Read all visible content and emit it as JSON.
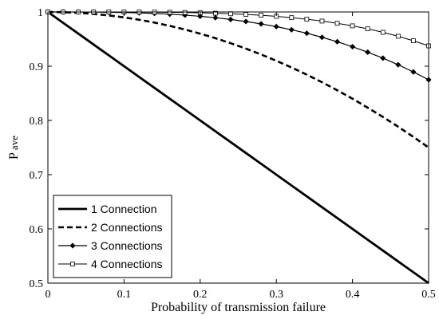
{
  "chart_data": {
    "type": "line",
    "title": "",
    "xlabel": "Probability of transmission failure",
    "ylabel_main": "P",
    "ylabel_sub": "ave",
    "xlim": [
      0,
      0.5
    ],
    "ylim": [
      0.5,
      1
    ],
    "xticks": [
      0,
      0.1,
      0.2,
      0.3,
      0.4,
      0.5
    ],
    "yticks": [
      0.5,
      0.6,
      0.7,
      0.8,
      0.9,
      1
    ],
    "xtick_labels": [
      "0",
      "0.1",
      "0.2",
      "0.3",
      "0.4",
      "0.5"
    ],
    "ytick_labels": [
      "0.5",
      "0.6",
      "0.7",
      "0.8",
      "0.9",
      "1"
    ],
    "grid": false,
    "legend_position": "bottom-left",
    "x": [
      0,
      0.02,
      0.04,
      0.06,
      0.08,
      0.1,
      0.12,
      0.14,
      0.16,
      0.18,
      0.2,
      0.22,
      0.24,
      0.26,
      0.28,
      0.3,
      0.32,
      0.34,
      0.36,
      0.38,
      0.4,
      0.42,
      0.44,
      0.46,
      0.48,
      0.5
    ],
    "series": [
      {
        "name": "1 Connection",
        "style": "solid-thick",
        "values": [
          1,
          0.98,
          0.96,
          0.94,
          0.92,
          0.9,
          0.88,
          0.86,
          0.84,
          0.82,
          0.8,
          0.78,
          0.76,
          0.74,
          0.72,
          0.7,
          0.68,
          0.66,
          0.64,
          0.62,
          0.6,
          0.58,
          0.56,
          0.54,
          0.52,
          0.5
        ]
      },
      {
        "name": "2 Connections",
        "style": "dashed",
        "values": [
          1,
          0.9996,
          0.9984,
          0.9964,
          0.9936,
          0.99,
          0.9856,
          0.9804,
          0.9744,
          0.9676,
          0.96,
          0.9516,
          0.9424,
          0.9324,
          0.9216,
          0.91,
          0.8976,
          0.8844,
          0.8704,
          0.8556,
          0.84,
          0.8236,
          0.8064,
          0.7884,
          0.7696,
          0.75
        ]
      },
      {
        "name": "3 Connections",
        "style": "diamond",
        "values": [
          1,
          1.0,
          0.9999,
          0.9998,
          0.9995,
          0.999,
          0.9983,
          0.9973,
          0.9959,
          0.9942,
          0.992,
          0.9894,
          0.9862,
          0.9824,
          0.978,
          0.973,
          0.9672,
          0.9607,
          0.9533,
          0.9451,
          0.936,
          0.9259,
          0.9148,
          0.9027,
          0.8894,
          0.875
        ]
      },
      {
        "name": "4 Connections",
        "style": "square",
        "values": [
          1,
          1.0,
          1.0,
          1.0,
          1.0,
          0.9999,
          0.9998,
          0.9996,
          0.9993,
          0.999,
          0.9984,
          0.9977,
          0.9967,
          0.9954,
          0.9939,
          0.9919,
          0.9895,
          0.9866,
          0.9832,
          0.9791,
          0.9744,
          0.9689,
          0.9625,
          0.9552,
          0.9469,
          0.9375
        ]
      }
    ]
  }
}
